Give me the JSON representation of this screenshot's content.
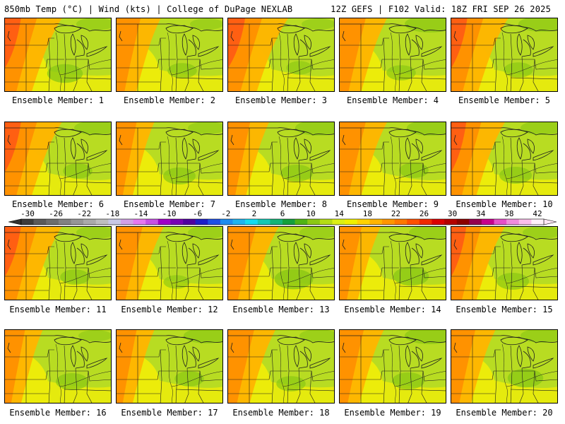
{
  "header": {
    "left": "850mb Temp (°C) | Wind (kts) | College of DuPage NEXLAB",
    "right": "12Z GEFS | F102 Valid: 18Z FRI SEP 26 2025"
  },
  "panel_label_prefix": "Ensemble Member: ",
  "members": [
    {
      "number": 1,
      "label": "Ensemble Member: 1",
      "warm_west": 0.9,
      "green_se": 0.6,
      "green_ne": 0.3
    },
    {
      "number": 2,
      "label": "Ensemble Member: 2",
      "warm_west": 0.5,
      "green_se": 0.4,
      "green_ne": 0.2
    },
    {
      "number": 3,
      "label": "Ensemble Member: 3",
      "warm_west": 1.0,
      "green_se": 0.3,
      "green_ne": 0.2
    },
    {
      "number": 4,
      "label": "Ensemble Member: 4",
      "warm_west": 0.6,
      "green_se": 0.4,
      "green_ne": 0.6
    },
    {
      "number": 5,
      "label": "Ensemble Member: 5",
      "warm_west": 0.9,
      "green_se": 0.4,
      "green_ne": 0.5
    },
    {
      "number": 6,
      "label": "Ensemble Member: 6",
      "warm_west": 0.9,
      "green_se": 0.4,
      "green_ne": 0.4
    },
    {
      "number": 7,
      "label": "Ensemble Member: 7",
      "warm_west": 0.3,
      "green_se": 0.5,
      "green_ne": 0.3
    },
    {
      "number": 8,
      "label": "Ensemble Member: 8",
      "warm_west": 0.4,
      "green_se": 0.5,
      "green_ne": 0.5
    },
    {
      "number": 9,
      "label": "Ensemble Member: 9",
      "warm_west": 0.6,
      "green_se": 0.4,
      "green_ne": 0.5
    },
    {
      "number": 10,
      "label": "Ensemble Member: 10",
      "warm_west": 0.8,
      "green_se": 0.5,
      "green_ne": 0.4
    },
    {
      "number": 11,
      "label": "Ensemble Member: 11",
      "warm_west": 0.9,
      "green_se": 0.4,
      "green_ne": 0.3
    },
    {
      "number": 12,
      "label": "Ensemble Member: 12",
      "warm_west": 0.6,
      "green_se": 0.3,
      "green_ne": 0.3
    },
    {
      "number": 13,
      "label": "Ensemble Member: 13",
      "warm_west": 0.7,
      "green_se": 0.7,
      "green_ne": 0.3
    },
    {
      "number": 14,
      "label": "Ensemble Member: 14",
      "warm_west": 0.4,
      "green_se": 0.6,
      "green_ne": 0.4
    },
    {
      "number": 15,
      "label": "Ensemble Member: 15",
      "warm_west": 0.8,
      "green_se": 0.5,
      "green_ne": 0.3
    },
    {
      "number": 16,
      "label": "Ensemble Member: 16",
      "warm_west": 0.3,
      "green_se": 0.5,
      "green_ne": 0.2
    },
    {
      "number": 17,
      "label": "Ensemble Member: 17",
      "warm_west": 0.3,
      "green_se": 0.4,
      "green_ne": 0.5
    },
    {
      "number": 18,
      "label": "Ensemble Member: 18",
      "warm_west": 0.6,
      "green_se": 0.4,
      "green_ne": 0.3
    },
    {
      "number": 19,
      "label": "Ensemble Member: 19",
      "warm_west": 0.5,
      "green_se": 0.5,
      "green_ne": 0.6
    },
    {
      "number": 20,
      "label": "Ensemble Member: 20",
      "warm_west": 0.5,
      "green_se": 0.6,
      "green_ne": 0.4
    }
  ],
  "colorbar": {
    "unit": "°C",
    "tick_labels": [
      "-30",
      "-26",
      "-22",
      "-18",
      "-14",
      "-10",
      "-6",
      "-2",
      "2",
      "6",
      "10",
      "14",
      "18",
      "22",
      "26",
      "30",
      "34",
      "38",
      "42"
    ],
    "colors": [
      "#3c3c3c",
      "#5a5a5a",
      "#6e6e6e",
      "#828282",
      "#969696",
      "#aaaaaa",
      "#bebebe",
      "#c8c8e6",
      "#d2a0e6",
      "#e678f0",
      "#c850e6",
      "#a000c8",
      "#7800b4",
      "#5000a0",
      "#1e1ec8",
      "#1e50e6",
      "#1e8cf0",
      "#1eb4f0",
      "#14dcf0",
      "#14c8b4",
      "#14b478",
      "#14a03c",
      "#50b414",
      "#8cc814",
      "#b4dc14",
      "#dcf014",
      "#f0f000",
      "#ffd200",
      "#ffb400",
      "#ff9600",
      "#ff7800",
      "#ff5000",
      "#f02800",
      "#dc0000",
      "#b40000",
      "#8c0000",
      "#960050",
      "#c8008c",
      "#e650c8",
      "#f08cdc",
      "#fabeeb",
      "#fff0fa"
    ],
    "arrow_colors": [
      "#323232",
      "#ffe6f5"
    ]
  },
  "map_colors": {
    "base_yellow": "#ecec0a",
    "mid_green": "#b8dc22",
    "deep_green": "#8cc814",
    "orange": "#ffb400",
    "dark_orange": "#ff8c00",
    "red_orange": "#ff5a14",
    "linework": "#1e1e1e"
  }
}
